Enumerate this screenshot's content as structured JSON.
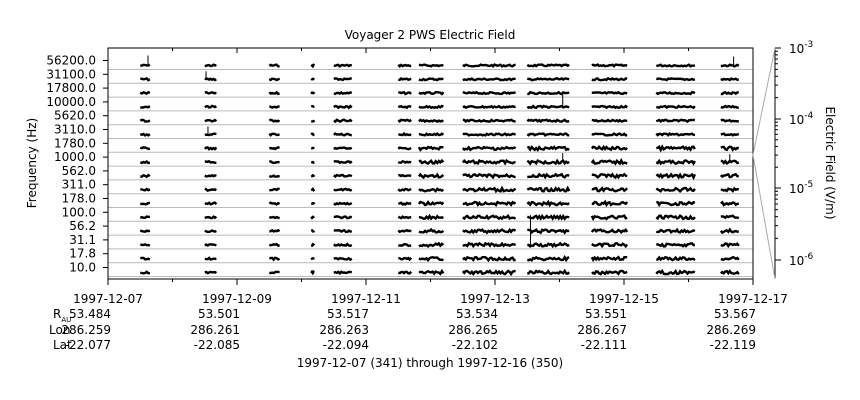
{
  "chart_data": {
    "type": "line",
    "title": "Voyager 2 PWS Electric Field",
    "ylabel": "Frequency (Hz)",
    "ylabel_right": "Electric Field (V/m)",
    "subtitle": "1997-12-07 (341) through 1997-12-16 (350)",
    "channels_hz": [
      "56200.0",
      "31100.0",
      "17800.0",
      "10000.0",
      "5620.0",
      "3110.0",
      "1780.0",
      "1000.0",
      "562.0",
      "311.0",
      "178.0",
      "100.0",
      "56.2",
      "31.1",
      "17.8",
      "10.0"
    ],
    "right_axis": {
      "scale": "log",
      "tick_labels": [
        {
          "mantissa": "10",
          "exp": "-3"
        },
        {
          "mantissa": "10",
          "exp": "-4"
        },
        {
          "mantissa": "10",
          "exp": "-5"
        },
        {
          "mantissa": "10",
          "exp": "-6"
        }
      ]
    },
    "x_tick_labels": [
      "1997-12-07",
      "1997-12-09",
      "1997-12-11",
      "1997-12-13",
      "1997-12-15",
      "1997-12-17"
    ],
    "ephemeris": {
      "row_labels": {
        "r_main": "R",
        "r_sub": "AU",
        "lon": "Lon",
        "lat": "Lat"
      },
      "r_au": [
        "53.484",
        "53.501",
        "53.517",
        "53.534",
        "53.551",
        "53.567"
      ],
      "lon": [
        "286.259",
        "286.261",
        "286.263",
        "286.265",
        "286.267",
        "286.269"
      ],
      "lat": [
        "-22.077",
        "-22.085",
        "-22.094",
        "-22.102",
        "-22.111",
        "-22.119"
      ]
    },
    "x_range_days": [
      0,
      10
    ],
    "data_segments_days": [
      [
        0.5,
        0.65
      ],
      [
        1.5,
        1.68
      ],
      [
        2.5,
        2.66
      ],
      [
        3.15,
        3.2
      ],
      [
        3.5,
        3.78
      ],
      [
        4.5,
        4.7
      ],
      [
        4.82,
        5.2
      ],
      [
        5.5,
        6.32
      ],
      [
        6.5,
        7.15
      ],
      [
        7.5,
        8.05
      ],
      [
        8.5,
        9.1
      ],
      [
        9.5,
        9.78
      ]
    ],
    "grid": true,
    "colors": {
      "trace": "#000000",
      "grid": "#bbbbbb",
      "axis": "#000000",
      "connector": "#aaaaaa"
    }
  }
}
